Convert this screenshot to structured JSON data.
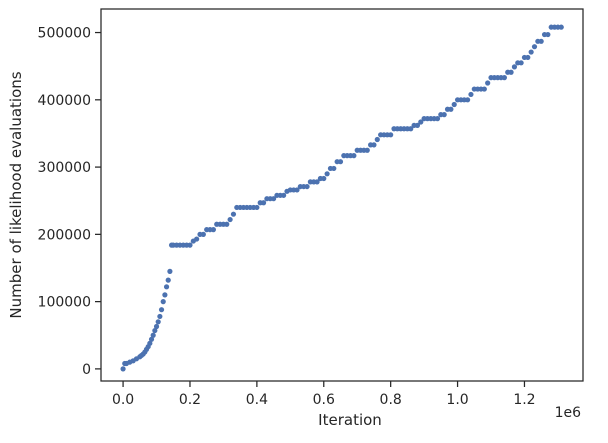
{
  "chart_data": {
    "type": "scatter",
    "title": "",
    "xlabel": "Iteration",
    "ylabel": "Number of likelihood evaluations",
    "x_offset_label": "1e6",
    "xlim": [
      -0.066,
      1.375
    ],
    "ylim": [
      -18000,
      535000
    ],
    "xticks": [
      0.0,
      0.2,
      0.4,
      0.6,
      0.8,
      1.0,
      1.2
    ],
    "xtick_labels": [
      "0.0",
      "0.2",
      "0.4",
      "0.6",
      "0.8",
      "1.0",
      "1.2"
    ],
    "yticks": [
      0,
      100000,
      200000,
      300000,
      400000,
      500000
    ],
    "ytick_labels": [
      "0",
      "100000",
      "200000",
      "300000",
      "400000",
      "500000"
    ],
    "grid": false,
    "legend": "none",
    "marker_color": "#4c72b0",
    "series": [
      {
        "x": [
          0.0,
          0.005,
          0.01,
          0.02,
          0.03,
          0.04,
          0.05,
          0.055,
          0.06,
          0.065,
          0.07,
          0.075,
          0.08,
          0.085,
          0.09,
          0.095,
          0.1,
          0.105,
          0.11,
          0.115,
          0.12,
          0.125,
          0.13,
          0.135,
          0.14,
          0.145,
          0.15,
          0.16,
          0.17,
          0.18,
          0.19,
          0.2,
          0.21,
          0.22,
          0.23,
          0.24,
          0.25,
          0.26,
          0.27,
          0.28,
          0.29,
          0.3,
          0.31,
          0.32,
          0.33,
          0.34,
          0.35,
          0.36,
          0.37,
          0.38,
          0.39,
          0.4,
          0.41,
          0.42,
          0.43,
          0.44,
          0.45,
          0.46,
          0.47,
          0.48,
          0.49,
          0.5,
          0.51,
          0.52,
          0.53,
          0.54,
          0.55,
          0.56,
          0.57,
          0.58,
          0.59,
          0.6,
          0.61,
          0.62,
          0.63,
          0.64,
          0.65,
          0.66,
          0.67,
          0.68,
          0.69,
          0.7,
          0.71,
          0.72,
          0.73,
          0.74,
          0.75,
          0.76,
          0.77,
          0.78,
          0.79,
          0.8,
          0.81,
          0.82,
          0.83,
          0.84,
          0.85,
          0.86,
          0.87,
          0.88,
          0.89,
          0.9,
          0.91,
          0.92,
          0.93,
          0.94,
          0.95,
          0.96,
          0.97,
          0.98,
          0.99,
          1.0,
          1.01,
          1.02,
          1.03,
          1.04,
          1.05,
          1.06,
          1.07,
          1.08,
          1.09,
          1.1,
          1.11,
          1.12,
          1.13,
          1.14,
          1.15,
          1.16,
          1.17,
          1.18,
          1.19,
          1.2,
          1.21,
          1.22,
          1.23,
          1.24,
          1.25,
          1.26,
          1.27,
          1.28,
          1.29,
          1.3,
          1.31
        ],
        "y": [
          0,
          8000,
          8000,
          10000,
          12000,
          15000,
          18000,
          20000,
          22000,
          25000,
          29000,
          33000,
          38000,
          44000,
          50000,
          57000,
          63000,
          70000,
          78000,
          88000,
          100000,
          110000,
          122000,
          132000,
          145000,
          184000,
          184000,
          184000,
          184000,
          184000,
          184000,
          184000,
          190000,
          193000,
          200000,
          200000,
          207000,
          207000,
          207000,
          215000,
          215000,
          215000,
          215000,
          222000,
          230000,
          240000,
          240000,
          240000,
          240000,
          240000,
          240000,
          240000,
          247000,
          247000,
          253000,
          253000,
          253000,
          258000,
          258000,
          258000,
          264000,
          266000,
          266000,
          266000,
          271000,
          271000,
          271000,
          278000,
          278000,
          278000,
          283000,
          283000,
          290000,
          298000,
          298000,
          308000,
          308000,
          317000,
          317000,
          317000,
          317000,
          325000,
          325000,
          325000,
          325000,
          333000,
          333000,
          341000,
          348000,
          348000,
          348000,
          348000,
          357000,
          357000,
          357000,
          357000,
          357000,
          357000,
          362000,
          362000,
          367000,
          372000,
          372000,
          372000,
          372000,
          372000,
          378000,
          378000,
          386000,
          386000,
          393000,
          400000,
          400000,
          400000,
          400000,
          408000,
          416000,
          416000,
          416000,
          416000,
          425000,
          433000,
          433000,
          433000,
          433000,
          433000,
          441000,
          441000,
          449000,
          455000,
          455000,
          463000,
          463000,
          471000,
          479000,
          487000,
          487000,
          497000,
          497000,
          508000,
          508000,
          508000,
          508000
        ]
      }
    ]
  }
}
